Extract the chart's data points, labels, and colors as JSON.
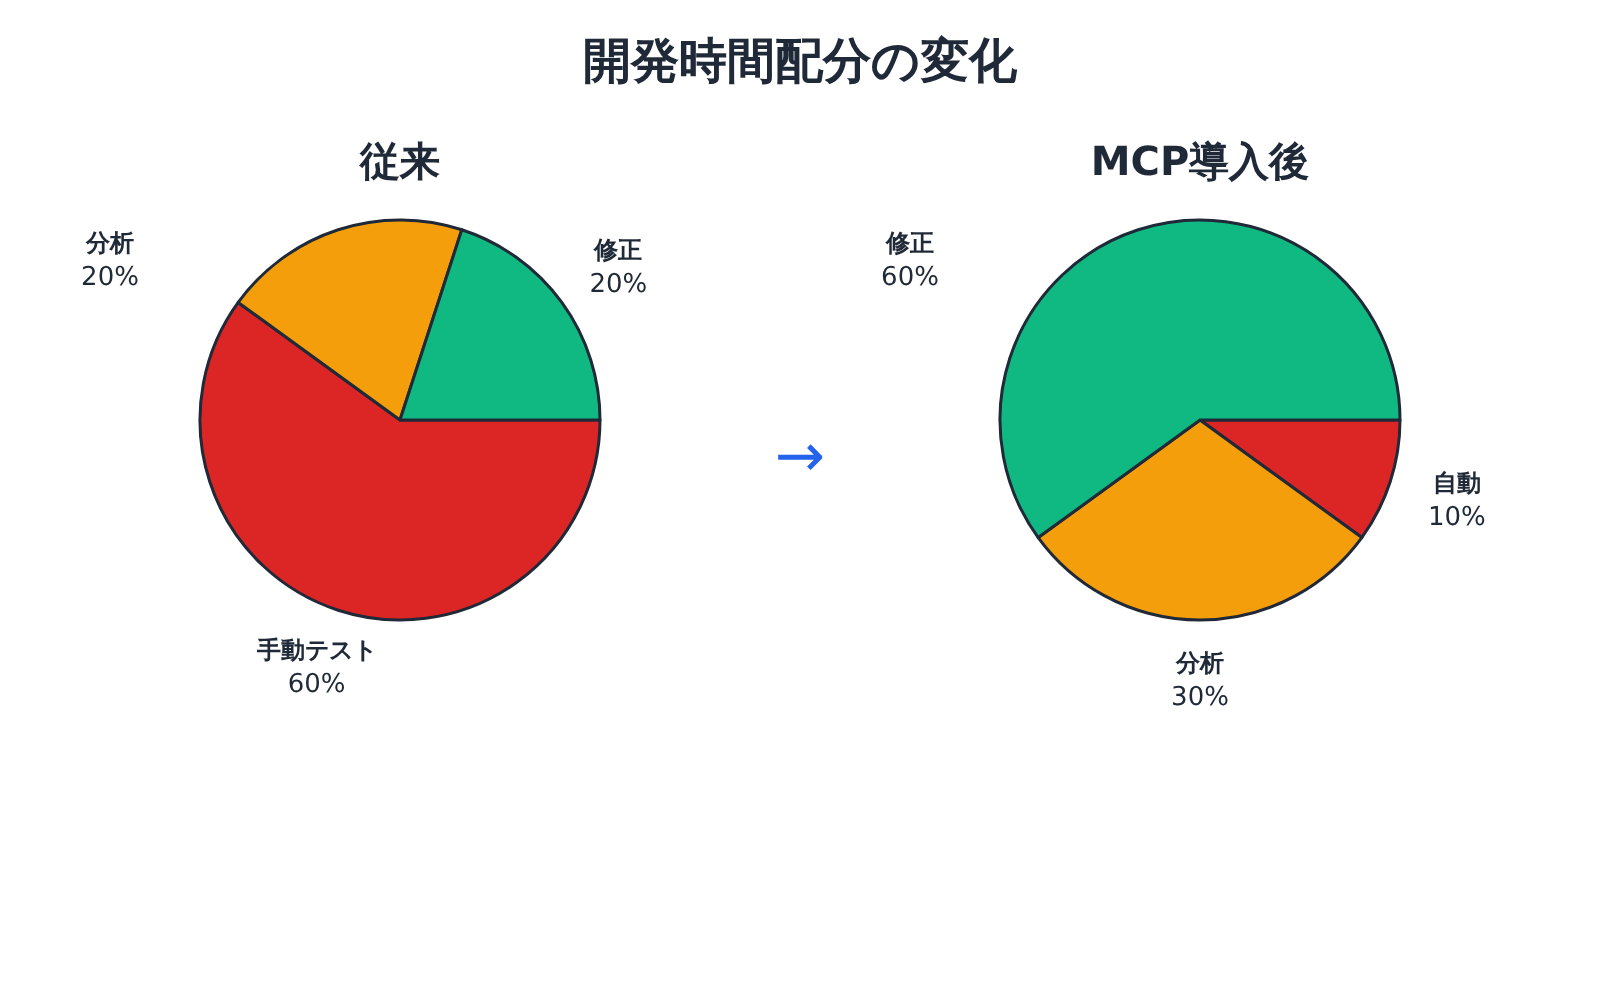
{
  "chart_data": [
    {
      "type": "other",
      "title": "開発時間配分の変化",
      "annotations": [
        "→"
      ]
    },
    {
      "type": "pie",
      "title": "従来",
      "categories": [
        "手動テスト",
        "分析",
        "修正"
      ],
      "values": [
        60,
        20,
        20
      ],
      "value_labels": [
        "60%",
        "20%",
        "20%"
      ],
      "colors": [
        "#dc2626",
        "#f59e0b",
        "#10b981"
      ]
    },
    {
      "type": "pie",
      "title": "MCP導入後",
      "categories": [
        "自動",
        "分析",
        "修正"
      ],
      "values": [
        10,
        30,
        60
      ],
      "value_labels": [
        "10%",
        "30%",
        "60%"
      ],
      "colors": [
        "#dc2626",
        "#f59e0b",
        "#10b981"
      ]
    }
  ]
}
